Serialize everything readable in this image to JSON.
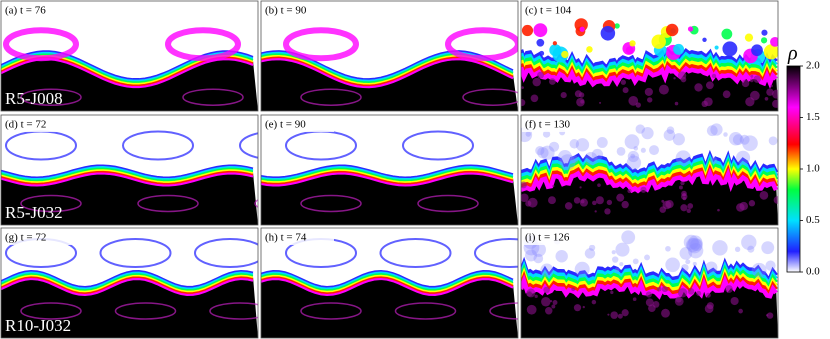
{
  "panels": [
    {
      "label": "(a) t = 76"
    },
    {
      "label": "(b) t = 90"
    },
    {
      "label": "(c) t = 104"
    },
    {
      "label": "(d) t = 72"
    },
    {
      "label": "(e) t = 90"
    },
    {
      "label": "(f) t = 130"
    },
    {
      "label": "(g) t = 72"
    },
    {
      "label": "(h) t = 74"
    },
    {
      "label": "(i) t = 126"
    }
  ],
  "row_labels": [
    "R5-J008",
    "R5-J032",
    "R10-J032"
  ],
  "colorbar": {
    "label": "ρ",
    "range": [
      0,
      2
    ],
    "ticks": [
      {
        "value": 0,
        "label": "0.0"
      },
      {
        "value": 0.5,
        "label": "0.5"
      },
      {
        "value": 1,
        "label": "1.0"
      },
      {
        "value": 1.5,
        "label": "1.5"
      },
      {
        "value": 2,
        "label": "2.0"
      }
    ]
  }
}
